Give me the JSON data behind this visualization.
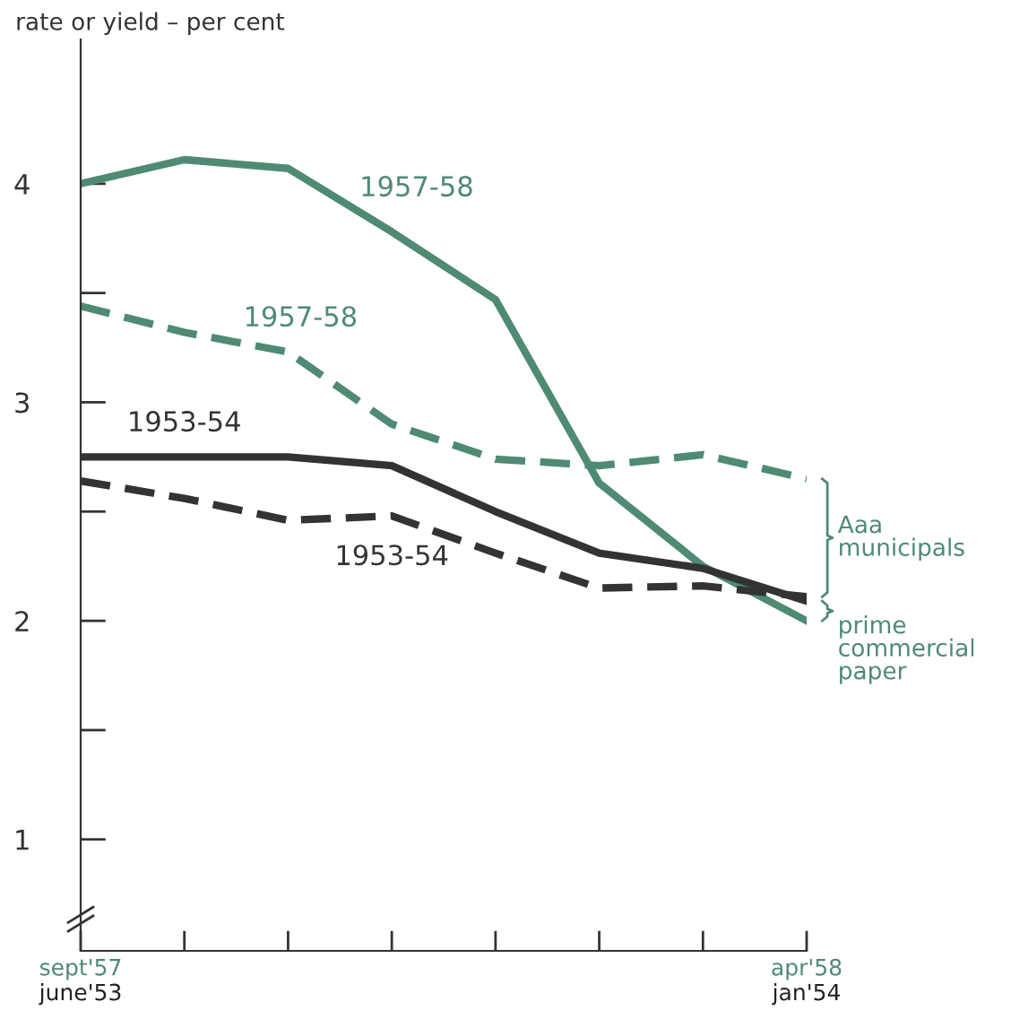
{
  "chart_data": {
    "type": "line",
    "ylabel": "rate or yield – per cent",
    "categories": [
      "sept'57\njune'53",
      null,
      null,
      null,
      null,
      null,
      null,
      "apr'58\njan'54"
    ],
    "ylim": [
      0.49,
      4.66
    ],
    "yticks": [
      {
        "value": 1,
        "label": "1"
      },
      {
        "value": 1.5,
        "label": null
      },
      {
        "value": 2,
        "label": "2"
      },
      {
        "value": 2.5,
        "label": null
      },
      {
        "value": 3,
        "label": "3"
      },
      {
        "value": 3.5,
        "label": null
      },
      {
        "value": 4,
        "label": "4"
      }
    ],
    "series": [
      {
        "name": "1957-58",
        "color": "#4f8a72",
        "line_style": "solid",
        "values": [
          4.0,
          4.11,
          4.07,
          3.78,
          3.47,
          2.63,
          2.25,
          2.0
        ]
      },
      {
        "name": "1957-58",
        "color": "#4f8a72",
        "line_style": "dashed",
        "values": [
          3.44,
          3.32,
          3.23,
          2.9,
          2.74,
          2.71,
          2.76,
          2.65
        ]
      },
      {
        "name": "1953-54",
        "color": "#333333",
        "line_style": "solid",
        "values": [
          2.75,
          2.75,
          2.75,
          2.71,
          2.5,
          2.31,
          2.24,
          2.09
        ]
      },
      {
        "name": "1953-54",
        "color": "#333333",
        "line_style": "dashed",
        "values": [
          2.64,
          2.56,
          2.46,
          2.48,
          2.31,
          2.15,
          2.16,
          2.11
        ]
      }
    ],
    "annotations": [
      "Aaa municipals",
      "prime commercial paper"
    ],
    "grid": false,
    "legend": false,
    "marker": "none"
  }
}
